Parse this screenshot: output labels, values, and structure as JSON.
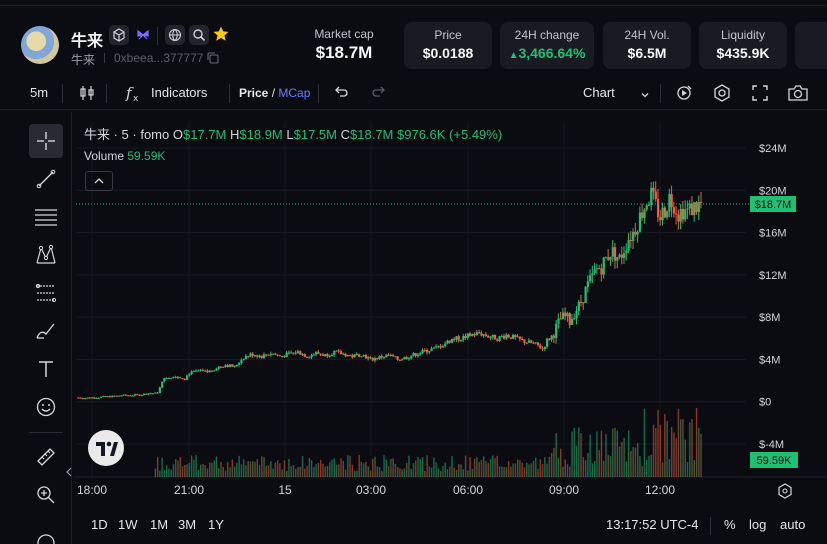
{
  "token": {
    "name": "牛来",
    "symbol": "牛来",
    "address": "0xbeea...377777"
  },
  "stats": {
    "market_cap": {
      "label": "Market cap",
      "value": "$18.7M"
    },
    "price": {
      "label": "Price",
      "value": "$0.0188"
    },
    "change_24h": {
      "label": "24H change",
      "value": "3,466.64%"
    },
    "volume_24h": {
      "label": "24H Vol.",
      "value": "$6.5M"
    },
    "liquidity": {
      "label": "Liquidity",
      "value": "$435.9K"
    }
  },
  "toolbar": {
    "interval": "5m",
    "indicators": "Indicators",
    "price_label": "Price",
    "slash": "/",
    "mcap_label": "MCap",
    "chart_label": "Chart"
  },
  "legend": {
    "title": "牛来 · 5 · fomo",
    "o_key": "O",
    "o_val": "$17.7M",
    "h_key": "H",
    "h_val": "$18.9M",
    "l_key": "L",
    "l_val": "$17.5M",
    "c_key": "C",
    "c_val": "$18.7M",
    "change": "$976.6K (+5.49%)",
    "volume_label": "Volume",
    "volume_val": "59.59K"
  },
  "bottom": {
    "ranges": [
      "1D",
      "1W",
      "1M",
      "3M",
      "1Y"
    ],
    "time": "13:17:52 UTC-4",
    "pct": "%",
    "log": "log",
    "auto": "auto"
  },
  "colors": {
    "up": "#20c074",
    "down": "#f0603c",
    "accent": "#6b7cff",
    "background": "#0b0b12"
  },
  "chart_data": {
    "type": "candlestick",
    "title": "牛来 · 5 · fomo",
    "x_tick_labels": [
      "18:00",
      "21:00",
      "15",
      "03:00",
      "06:00",
      "09:00",
      "12:00"
    ],
    "y_tick_labels": [
      "$24M",
      "$20M",
      "$16M",
      "$12M",
      "$8M",
      "$4M",
      "$0",
      "$-4M"
    ],
    "ylim": [
      -4,
      24
    ],
    "y_unit": "M USD",
    "last_price_label": "$18.7M",
    "volume_label": "59.59K",
    "series": [
      {
        "name": "price",
        "points": [
          [
            0,
            0.4
          ],
          [
            8,
            0.35
          ],
          [
            16,
            0.4
          ],
          [
            24,
            0.45
          ],
          [
            32,
            0.5
          ],
          [
            40,
            0.6
          ],
          [
            48,
            0.6
          ],
          [
            56,
            0.65
          ],
          [
            64,
            0.8
          ],
          [
            72,
            0.8
          ],
          [
            76,
            2.0
          ],
          [
            80,
            2.3
          ],
          [
            88,
            2.4
          ],
          [
            96,
            2.2
          ],
          [
            100,
            2.7
          ],
          [
            108,
            2.9
          ],
          [
            116,
            2.8
          ],
          [
            124,
            3.2
          ],
          [
            132,
            3.5
          ],
          [
            140,
            3.3
          ],
          [
            148,
            4.2
          ],
          [
            156,
            4.5
          ],
          [
            164,
            4.3
          ],
          [
            172,
            4.6
          ],
          [
            180,
            4.3
          ],
          [
            188,
            4.5
          ],
          [
            196,
            4.7
          ],
          [
            204,
            4.3
          ],
          [
            212,
            4.6
          ],
          [
            220,
            4.4
          ],
          [
            228,
            4.7
          ],
          [
            236,
            4.5
          ],
          [
            244,
            4.3
          ],
          [
            252,
            4.5
          ],
          [
            260,
            4.0
          ],
          [
            268,
            4.2
          ],
          [
            276,
            4.4
          ],
          [
            284,
            4.0
          ],
          [
            292,
            4.2
          ],
          [
            300,
            4.5
          ],
          [
            308,
            4.8
          ],
          [
            316,
            5.0
          ],
          [
            324,
            5.4
          ],
          [
            332,
            5.9
          ],
          [
            340,
            6.0
          ],
          [
            348,
            6.3
          ],
          [
            356,
            6.5
          ],
          [
            364,
            6.2
          ],
          [
            372,
            6.0
          ],
          [
            380,
            6.3
          ],
          [
            388,
            6.0
          ],
          [
            396,
            5.7
          ],
          [
            404,
            5.5
          ],
          [
            408,
            5.3
          ],
          [
            412,
            5.0
          ],
          [
            416,
            5.8
          ],
          [
            420,
            6.2
          ],
          [
            424,
            7.0
          ],
          [
            428,
            7.8
          ],
          [
            432,
            8.0
          ],
          [
            436,
            7.6
          ],
          [
            440,
            8.5
          ],
          [
            444,
            9.0
          ],
          [
            448,
            10.0
          ],
          [
            452,
            11.0
          ],
          [
            456,
            11.8
          ],
          [
            460,
            12.5
          ],
          [
            464,
            12.8
          ],
          [
            468,
            13.5
          ],
          [
            472,
            14.2
          ],
          [
            476,
            14.0
          ],
          [
            480,
            13.5
          ],
          [
            484,
            14.5
          ],
          [
            488,
            15.5
          ],
          [
            492,
            16.0
          ],
          [
            496,
            17.0
          ],
          [
            500,
            18.0
          ],
          [
            504,
            19.0
          ],
          [
            508,
            19.5
          ],
          [
            512,
            18.5
          ],
          [
            516,
            17.5
          ],
          [
            520,
            18.2
          ],
          [
            524,
            19.3
          ],
          [
            528,
            18.8
          ],
          [
            532,
            17.8
          ],
          [
            536,
            18.2
          ],
          [
            540,
            18.0
          ],
          [
            544,
            18.3
          ],
          [
            548,
            18.5
          ],
          [
            552,
            18.7
          ]
        ]
      }
    ],
    "note_x_units": "5-minute bars from first visible bar"
  }
}
